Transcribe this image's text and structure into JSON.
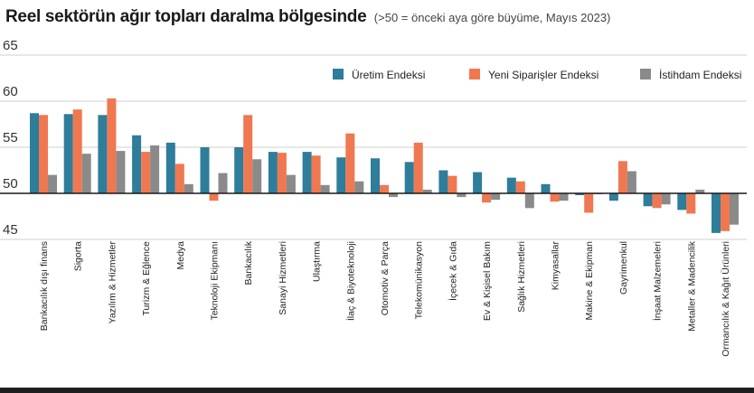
{
  "title": "Reel sektörün ağır topları daralma bölgesinde",
  "subtitle": "(>50 = önceki aya göre büyüme, Mayıs 2023)",
  "colors": {
    "series": [
      "#2e7d9a",
      "#f07850",
      "#8a8a8a"
    ],
    "grid": "#cfcfcf",
    "baseline": "#1a1a1a"
  },
  "chart_data": {
    "type": "bar",
    "ylim": [
      45,
      65
    ],
    "yticks": [
      45,
      50,
      55,
      60,
      65
    ],
    "baseline": 50,
    "legend_position": "top-right",
    "categories": [
      "Bankacılık dışı finans",
      "Sigorta",
      "Yazılım & Hizmetler",
      "Turizm & Eğlence",
      "Medya",
      "Teknoloji Ekipmanı",
      "Bankacılık",
      "Sanayi Hizmetleri",
      "Ulaştırma",
      "İlaç & Biyoteknoloji",
      "Otomotiv & Parça",
      "Telekomünikasyon",
      "İçecek & Gıda",
      "Ev & Kişisel Bakım",
      "Sağlık Hizmetleri",
      "Kimyasallar",
      "Makine & Ekipman",
      "Gayrimenkul",
      "İnşaat Malzemeleri",
      "Metaller & Madencilik",
      "Ormancılık & Kağıt Ürünleri"
    ],
    "series": [
      {
        "name": "Üretim Endeksi",
        "values": [
          58.7,
          58.6,
          58.5,
          56.3,
          55.5,
          55.0,
          55.0,
          54.5,
          54.5,
          53.9,
          53.8,
          53.4,
          52.5,
          52.3,
          51.7,
          51.0,
          49.8,
          49.2,
          48.6,
          48.2,
          45.7
        ]
      },
      {
        "name": "Yeni Siparişler Endeksi",
        "values": [
          58.5,
          59.1,
          60.3,
          54.5,
          53.2,
          49.2,
          58.5,
          54.4,
          54.1,
          56.5,
          50.9,
          55.5,
          51.9,
          49.0,
          51.3,
          49.1,
          47.9,
          53.5,
          48.4,
          47.8,
          45.9
        ]
      },
      {
        "name": "İstihdam Endeksi",
        "values": [
          52.0,
          54.3,
          54.6,
          55.2,
          51.0,
          52.2,
          53.7,
          52.0,
          50.9,
          51.3,
          49.6,
          50.4,
          49.6,
          49.3,
          48.4,
          49.2,
          49.9,
          52.4,
          48.8,
          50.4,
          46.6
        ]
      }
    ]
  }
}
